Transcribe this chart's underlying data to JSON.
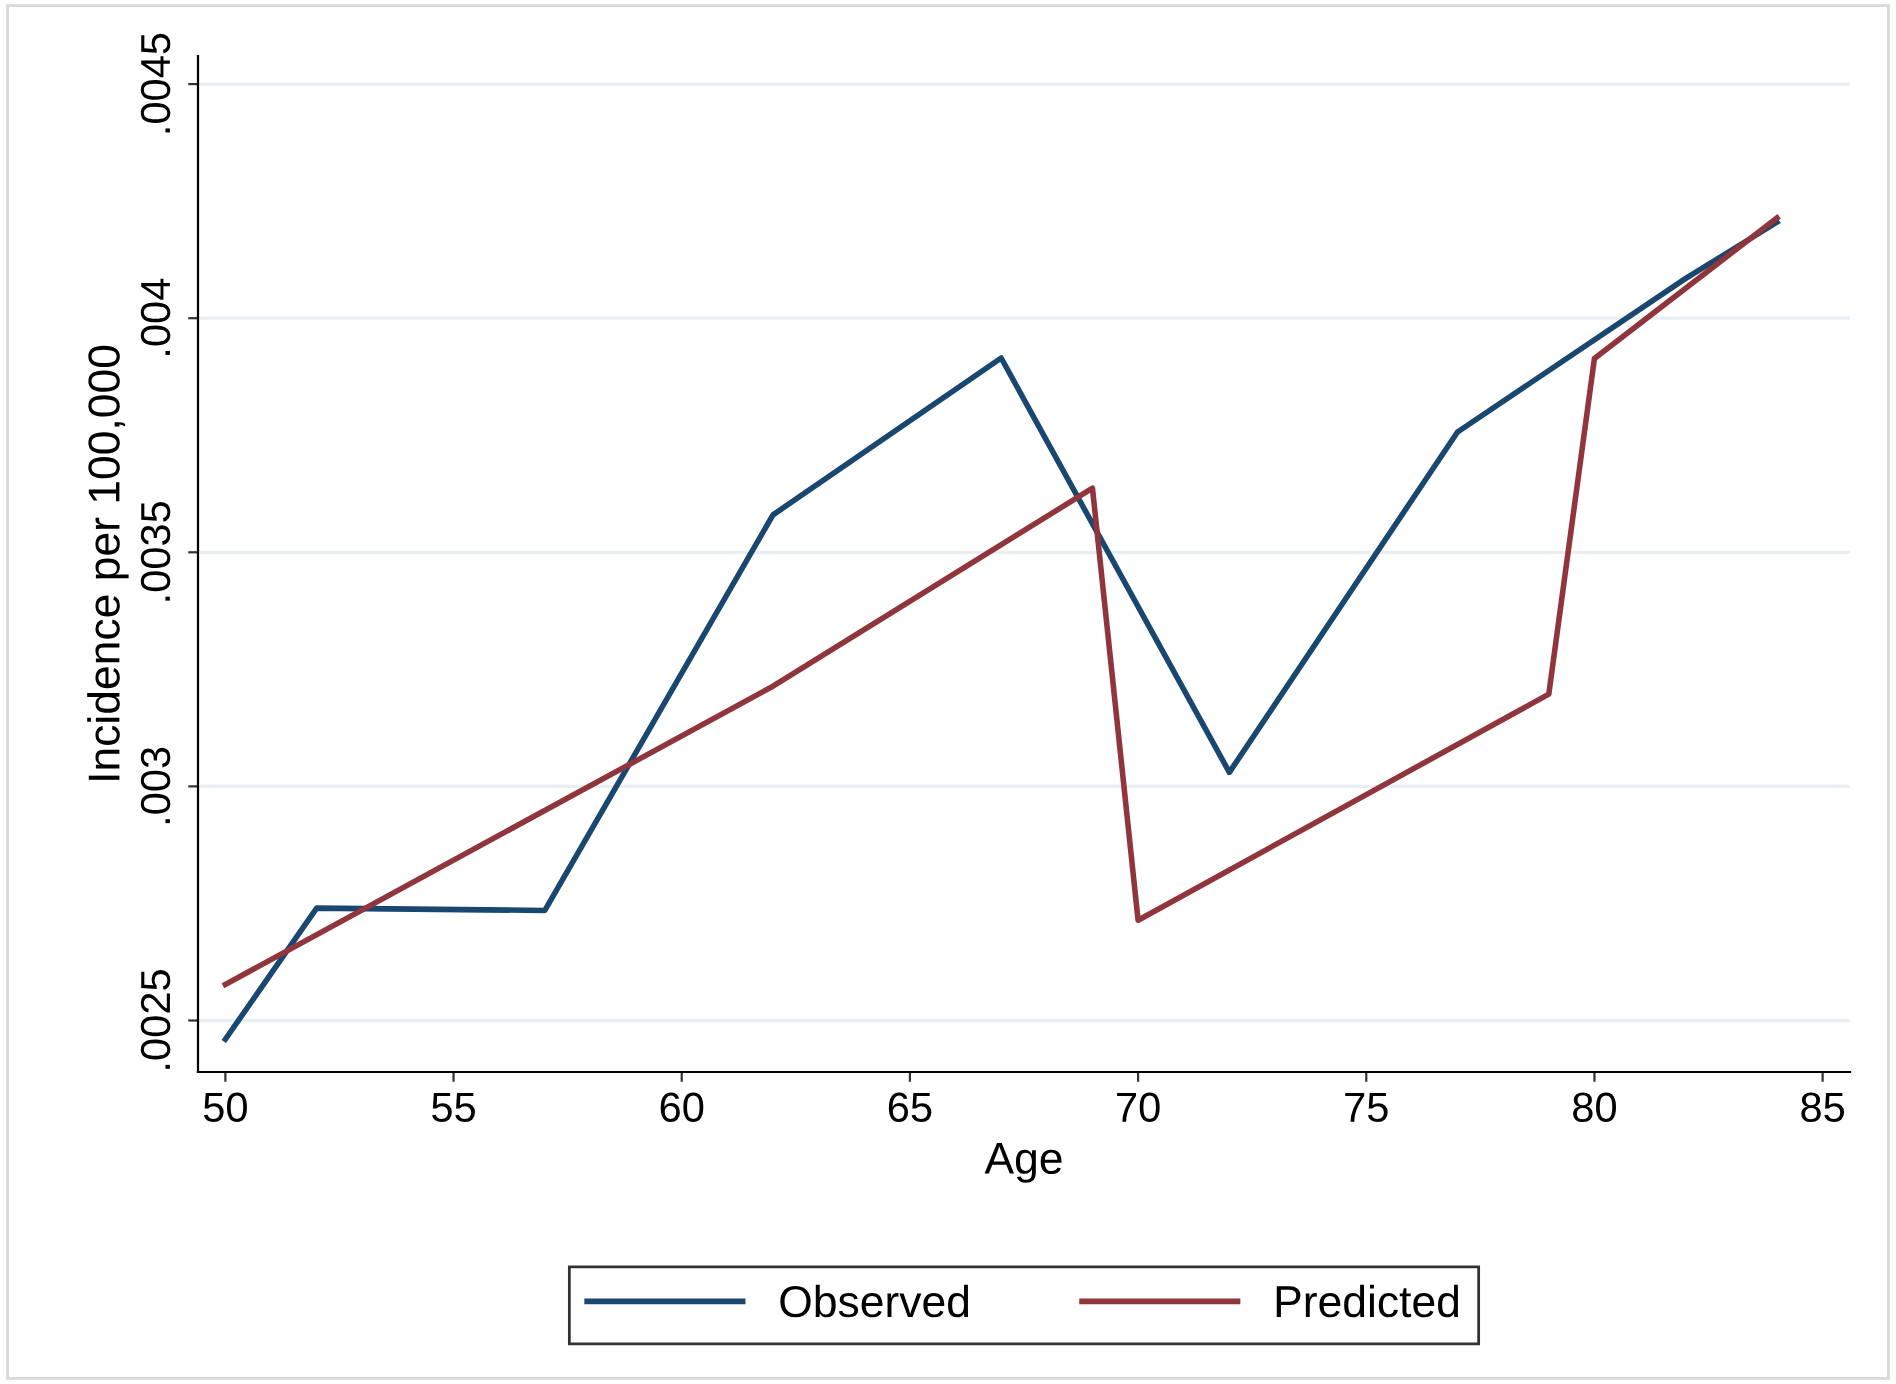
{
  "chart_data": {
    "type": "line",
    "xlabel": "Age",
    "ylabel": "Incidence per 100,000",
    "xlim": [
      49.4,
      85.6
    ],
    "xticks": [
      50,
      55,
      60,
      65,
      70,
      75,
      80,
      85
    ],
    "ylim": [
      0.00239,
      0.00456
    ],
    "yticks": [
      {
        "value": 0.0025,
        "label": ".0025"
      },
      {
        "value": 0.003,
        "label": ".003"
      },
      {
        "value": 0.0035,
        "label": ".0035"
      },
      {
        "value": 0.004,
        "label": ".004"
      },
      {
        "value": 0.0045,
        "label": ".0045"
      }
    ],
    "grid": "y",
    "legend": "bottom",
    "marker": "none",
    "line_style": "solid",
    "series": [
      {
        "name": "Observed",
        "color": "#1a476f",
        "x": [
          50,
          52,
          57,
          62,
          67,
          72,
          77,
          82,
          84
        ],
        "values": [
          0.00246,
          0.00274,
          0.002735,
          0.00358,
          0.003915,
          0.00303,
          0.003757,
          0.004085,
          0.004205
        ]
      },
      {
        "name": "Predicted",
        "color": "#90353b",
        "x": [
          50,
          62,
          69,
          70,
          79,
          80,
          84
        ],
        "values": [
          0.002577,
          0.003214,
          0.003637,
          0.002714,
          0.003197,
          0.003914,
          0.004214
        ]
      }
    ]
  }
}
